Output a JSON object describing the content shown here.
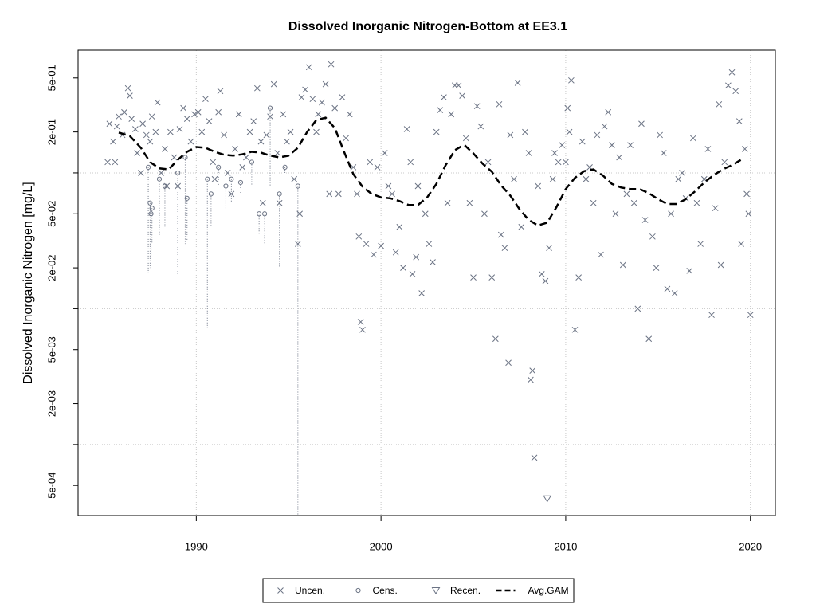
{
  "chart_data": {
    "type": "scatter",
    "title": "Dissolved Inorganic Nitrogen-Bottom at EE3.1",
    "y_label": "Dissolved Inorganic Nitrogen [mg/L]",
    "log_y": true,
    "grid": true,
    "legend": "bottom",
    "xlim": [
      1983.6,
      2021.35
    ],
    "ylim": [
      0.0003,
      0.8
    ],
    "xticks": [
      1990,
      2000,
      2010,
      2020
    ],
    "yticks": [
      {
        "value": 0.5,
        "label": "5e-01"
      },
      {
        "value": 0.2,
        "label": "2e-01"
      },
      {
        "value": 0.05,
        "label": "5e-02"
      },
      {
        "value": 0.02,
        "label": "2e-02"
      },
      {
        "value": 0.005,
        "label": "5e-03"
      },
      {
        "value": 0.002,
        "label": "2e-03"
      },
      {
        "value": 0.0005,
        "label": "5e-04"
      }
    ],
    "y_unlabeled_ticks": [
      0.1,
      0.01,
      0.001
    ],
    "series": [
      {
        "name": "Uncen.",
        "marker": "x",
        "color": "#6b7384",
        "x": [
          1985.2,
          1985.3,
          1985.5,
          1985.6,
          1985.7,
          1985.8,
          1986.0,
          1986.1,
          1986.3,
          1986.4,
          1986.5,
          1986.7,
          1986.8,
          1987.0,
          1987.1,
          1987.3,
          1987.5,
          1987.6,
          1987.8,
          1987.9,
          1988.1,
          1988.3,
          1988.4,
          1988.6,
          1988.8,
          1989.0,
          1989.1,
          1989.3,
          1989.5,
          1989.7,
          1989.9,
          1990.1,
          1990.3,
          1990.5,
          1990.7,
          1990.9,
          1991.0,
          1991.2,
          1991.3,
          1991.5,
          1991.7,
          1991.9,
          1992.1,
          1992.3,
          1992.5,
          1992.7,
          1992.9,
          1993.1,
          1993.3,
          1993.5,
          1993.6,
          1993.8,
          1994.0,
          1994.2,
          1994.4,
          1994.5,
          1994.7,
          1994.9,
          1995.1,
          1995.3,
          1995.5,
          1995.6,
          1995.7,
          1995.9,
          1996.1,
          1996.3,
          1996.5,
          1996.6,
          1996.8,
          1997.0,
          1997.2,
          1997.3,
          1997.5,
          1997.7,
          1997.9,
          1998.1,
          1998.3,
          1998.5,
          1998.7,
          1998.8,
          1998.9,
          1999.0,
          1999.2,
          1999.4,
          1999.6,
          1999.8,
          2000.0,
          2000.2,
          2000.4,
          2000.6,
          2000.8,
          2001.0,
          2001.2,
          2001.4,
          2001.6,
          2001.7,
          2001.9,
          2002.0,
          2002.2,
          2002.4,
          2002.6,
          2002.8,
          2003.0,
          2003.2,
          2003.4,
          2003.6,
          2003.8,
          2004.0,
          2004.2,
          2004.4,
          2004.6,
          2004.8,
          2005.0,
          2005.2,
          2005.4,
          2005.6,
          2005.8,
          2006.0,
          2006.2,
          2006.4,
          2006.5,
          2006.7,
          2006.9,
          2007.0,
          2007.2,
          2007.4,
          2007.6,
          2007.8,
          2008.0,
          2008.1,
          2008.2,
          2008.3,
          2008.5,
          2008.7,
          2008.9,
          2009.1,
          2009.3,
          2009.4,
          2009.6,
          2009.8,
          2010.0,
          2010.1,
          2010.2,
          2010.3,
          2010.5,
          2010.7,
          2010.9,
          2011.1,
          2011.3,
          2011.5,
          2011.7,
          2011.9,
          2012.1,
          2012.3,
          2012.5,
          2012.7,
          2012.9,
          2013.1,
          2013.3,
          2013.5,
          2013.7,
          2013.9,
          2014.1,
          2014.3,
          2014.5,
          2014.7,
          2014.9,
          2015.1,
          2015.3,
          2015.5,
          2015.7,
          2015.9,
          2016.1,
          2016.3,
          2016.5,
          2016.7,
          2016.9,
          2017.1,
          2017.3,
          2017.5,
          2017.7,
          2017.9,
          2018.1,
          2018.3,
          2018.4,
          2018.6,
          2018.8,
          2019.0,
          2019.2,
          2019.4,
          2019.5,
          2019.7,
          2019.8,
          2019.9,
          2020.0
        ],
        "values": [
          0.12,
          0.23,
          0.17,
          0.12,
          0.22,
          0.26,
          0.19,
          0.28,
          0.42,
          0.37,
          0.25,
          0.21,
          0.14,
          0.1,
          0.23,
          0.19,
          0.17,
          0.26,
          0.2,
          0.33,
          0.1,
          0.15,
          0.08,
          0.2,
          0.13,
          0.08,
          0.21,
          0.3,
          0.25,
          0.17,
          0.27,
          0.28,
          0.2,
          0.35,
          0.24,
          0.12,
          0.09,
          0.28,
          0.4,
          0.19,
          0.1,
          0.07,
          0.15,
          0.27,
          0.11,
          0.13,
          0.2,
          0.24,
          0.42,
          0.17,
          0.06,
          0.19,
          0.26,
          0.45,
          0.14,
          0.06,
          0.27,
          0.17,
          0.2,
          0.09,
          0.03,
          0.05,
          0.36,
          0.41,
          0.6,
          0.35,
          0.2,
          0.27,
          0.33,
          0.45,
          0.07,
          0.63,
          0.3,
          0.07,
          0.36,
          0.18,
          0.27,
          0.11,
          0.07,
          0.034,
          0.008,
          0.007,
          0.03,
          0.12,
          0.025,
          0.11,
          0.029,
          0.14,
          0.08,
          0.07,
          0.026,
          0.04,
          0.02,
          0.21,
          0.12,
          0.018,
          0.024,
          0.08,
          0.013,
          0.05,
          0.03,
          0.022,
          0.2,
          0.29,
          0.36,
          0.06,
          0.27,
          0.44,
          0.44,
          0.37,
          0.18,
          0.06,
          0.017,
          0.31,
          0.22,
          0.05,
          0.12,
          0.017,
          0.006,
          0.32,
          0.035,
          0.028,
          0.004,
          0.19,
          0.09,
          0.46,
          0.04,
          0.2,
          0.14,
          0.003,
          0.0035,
          0.0008,
          0.08,
          0.018,
          0.016,
          0.028,
          0.09,
          0.14,
          0.12,
          0.16,
          0.12,
          0.3,
          0.2,
          0.48,
          0.007,
          0.017,
          0.17,
          0.09,
          0.11,
          0.06,
          0.19,
          0.025,
          0.22,
          0.28,
          0.16,
          0.05,
          0.13,
          0.021,
          0.07,
          0.16,
          0.06,
          0.01,
          0.23,
          0.045,
          0.006,
          0.034,
          0.02,
          0.19,
          0.14,
          0.014,
          0.05,
          0.013,
          0.09,
          0.1,
          0.065,
          0.019,
          0.18,
          0.06,
          0.03,
          0.09,
          0.15,
          0.009,
          0.055,
          0.32,
          0.021,
          0.12,
          0.44,
          0.55,
          0.4,
          0.24,
          0.03,
          0.15,
          0.07,
          0.05,
          0.009
        ]
      },
      {
        "name": "Cens.",
        "marker": "circle",
        "color": "#6b7384",
        "x": [
          1987.4,
          1987.5,
          1987.6,
          1987.55,
          1988.0,
          1988.3,
          1989.0,
          1989.4,
          1989.5,
          1990.6,
          1990.8,
          1991.2,
          1991.6,
          1991.9,
          1992.4,
          1993.0,
          1993.4,
          1993.7,
          1994.0,
          1994.5,
          1994.8,
          1995.5
        ],
        "values": [
          0.11,
          0.06,
          0.055,
          0.05,
          0.09,
          0.08,
          0.1,
          0.13,
          0.065,
          0.09,
          0.07,
          0.11,
          0.08,
          0.09,
          0.085,
          0.12,
          0.05,
          0.05,
          0.3,
          0.07,
          0.11,
          0.08
        ],
        "lower": [
          0.018,
          0.02,
          0.03,
          0.024,
          0.035,
          0.04,
          0.018,
          0.03,
          0.032,
          0.007,
          0.04,
          0.08,
          0.055,
          0.06,
          0.07,
          0.08,
          0.035,
          0.03,
          0.08,
          0.02,
          0.1,
          0.0003
        ]
      },
      {
        "name": "Recen.",
        "marker": "triangle",
        "color": "#6b7384",
        "x": [
          2009.0
        ],
        "values": [
          0.0004
        ]
      },
      {
        "name": "Avg.GAM",
        "marker": "dashed-line",
        "color": "#000000",
        "x": [
          1985.8,
          1986.4,
          1987,
          1987.5,
          1988,
          1988.5,
          1989,
          1989.5,
          1990,
          1990.5,
          1991,
          1991.5,
          1992,
          1992.5,
          1993,
          1993.5,
          1994,
          1994.5,
          1995,
          1995.5,
          1996,
          1996.5,
          1997,
          1997.5,
          1998,
          1998.5,
          1999,
          1999.5,
          2000,
          2000.5,
          2001,
          2001.5,
          2002,
          2002.5,
          2003,
          2003.5,
          2004,
          2004.5,
          2005,
          2005.5,
          2006,
          2006.5,
          2007,
          2007.5,
          2008,
          2008.5,
          2009,
          2009.5,
          2010,
          2010.5,
          2011,
          2011.5,
          2012,
          2012.5,
          2013,
          2013.5,
          2014,
          2014.5,
          2015,
          2015.5,
          2016,
          2016.5,
          2017,
          2017.5,
          2018,
          2018.5,
          2019,
          2019.5
        ],
        "values": [
          0.198,
          0.187,
          0.153,
          0.12,
          0.108,
          0.106,
          0.125,
          0.143,
          0.155,
          0.153,
          0.143,
          0.136,
          0.134,
          0.137,
          0.143,
          0.141,
          0.134,
          0.13,
          0.134,
          0.153,
          0.2,
          0.245,
          0.255,
          0.214,
          0.143,
          0.098,
          0.079,
          0.07,
          0.066,
          0.065,
          0.062,
          0.058,
          0.058,
          0.066,
          0.083,
          0.114,
          0.147,
          0.161,
          0.139,
          0.117,
          0.102,
          0.081,
          0.068,
          0.054,
          0.045,
          0.041,
          0.043,
          0.056,
          0.076,
          0.092,
          0.103,
          0.106,
          0.096,
          0.083,
          0.078,
          0.076,
          0.076,
          0.071,
          0.064,
          0.059,
          0.059,
          0.064,
          0.073,
          0.085,
          0.096,
          0.106,
          0.114,
          0.125
        ]
      }
    ]
  }
}
